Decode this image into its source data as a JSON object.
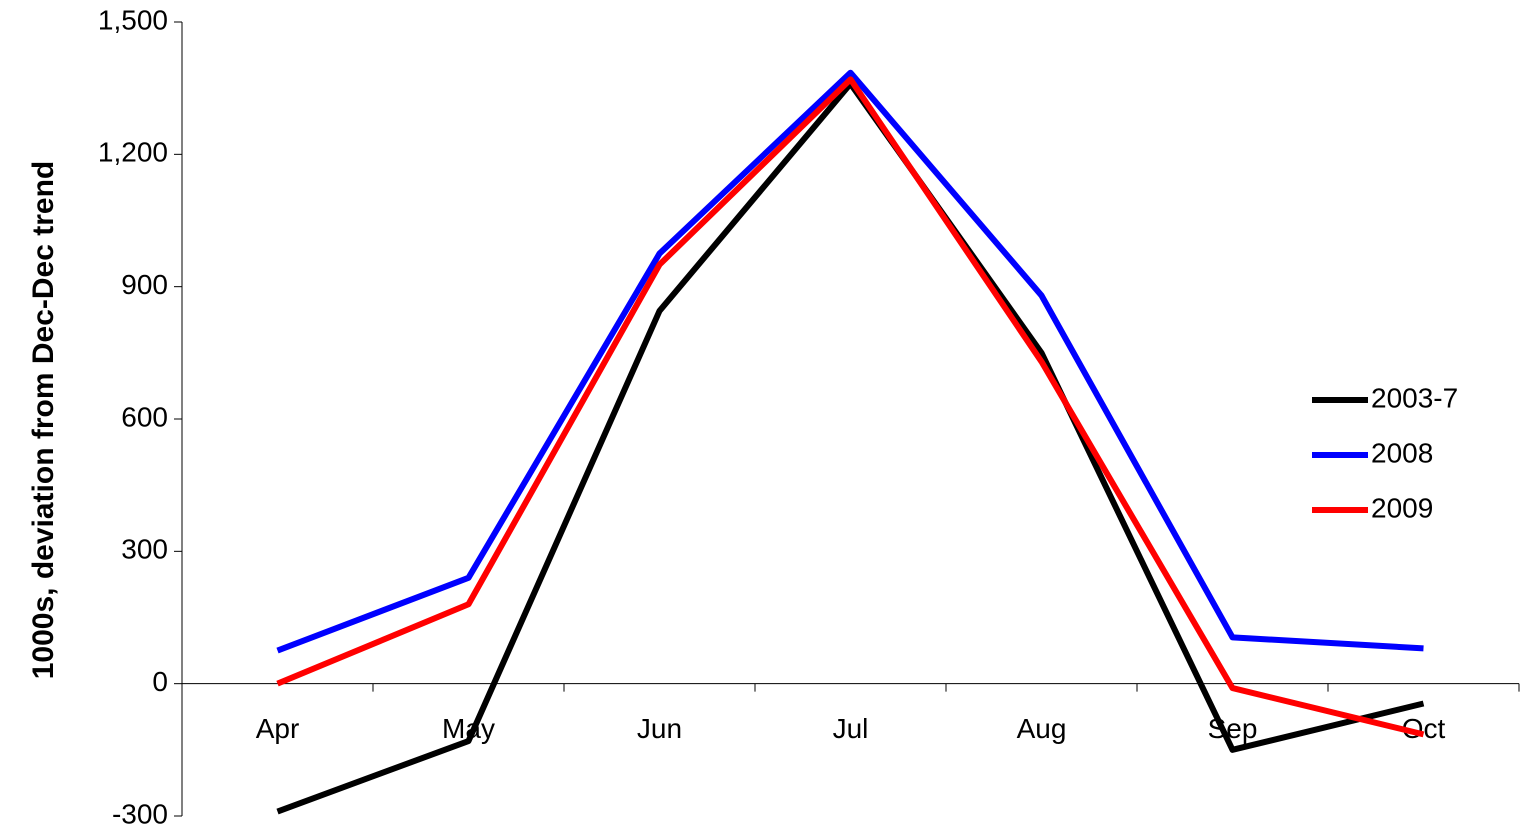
{
  "chart_data": {
    "type": "line",
    "y_label": "1000s, deviation from Dec-Dec trend",
    "categories": [
      "Apr",
      "May",
      "Jun",
      "Jul",
      "Aug",
      "Sep",
      "Oct"
    ],
    "series": [
      {
        "name": "2003-7",
        "color": "#000000",
        "values": [
          -290,
          -130,
          845,
          1360,
          750,
          -150,
          -45
        ]
      },
      {
        "name": "2008",
        "color": "#0000ff",
        "values": [
          75,
          240,
          975,
          1385,
          880,
          105,
          80
        ]
      },
      {
        "name": "2009",
        "color": "#ff0000",
        "values": [
          0,
          180,
          950,
          1370,
          730,
          -10,
          -115
        ]
      }
    ],
    "ylim": [
      -300,
      1500
    ],
    "yticks": [
      -300,
      0,
      300,
      600,
      900,
      {
        "value": 1200,
        "label": "1,200"
      },
      {
        "value": 1500,
        "label": "1,500"
      }
    ],
    "legend": "right"
  }
}
